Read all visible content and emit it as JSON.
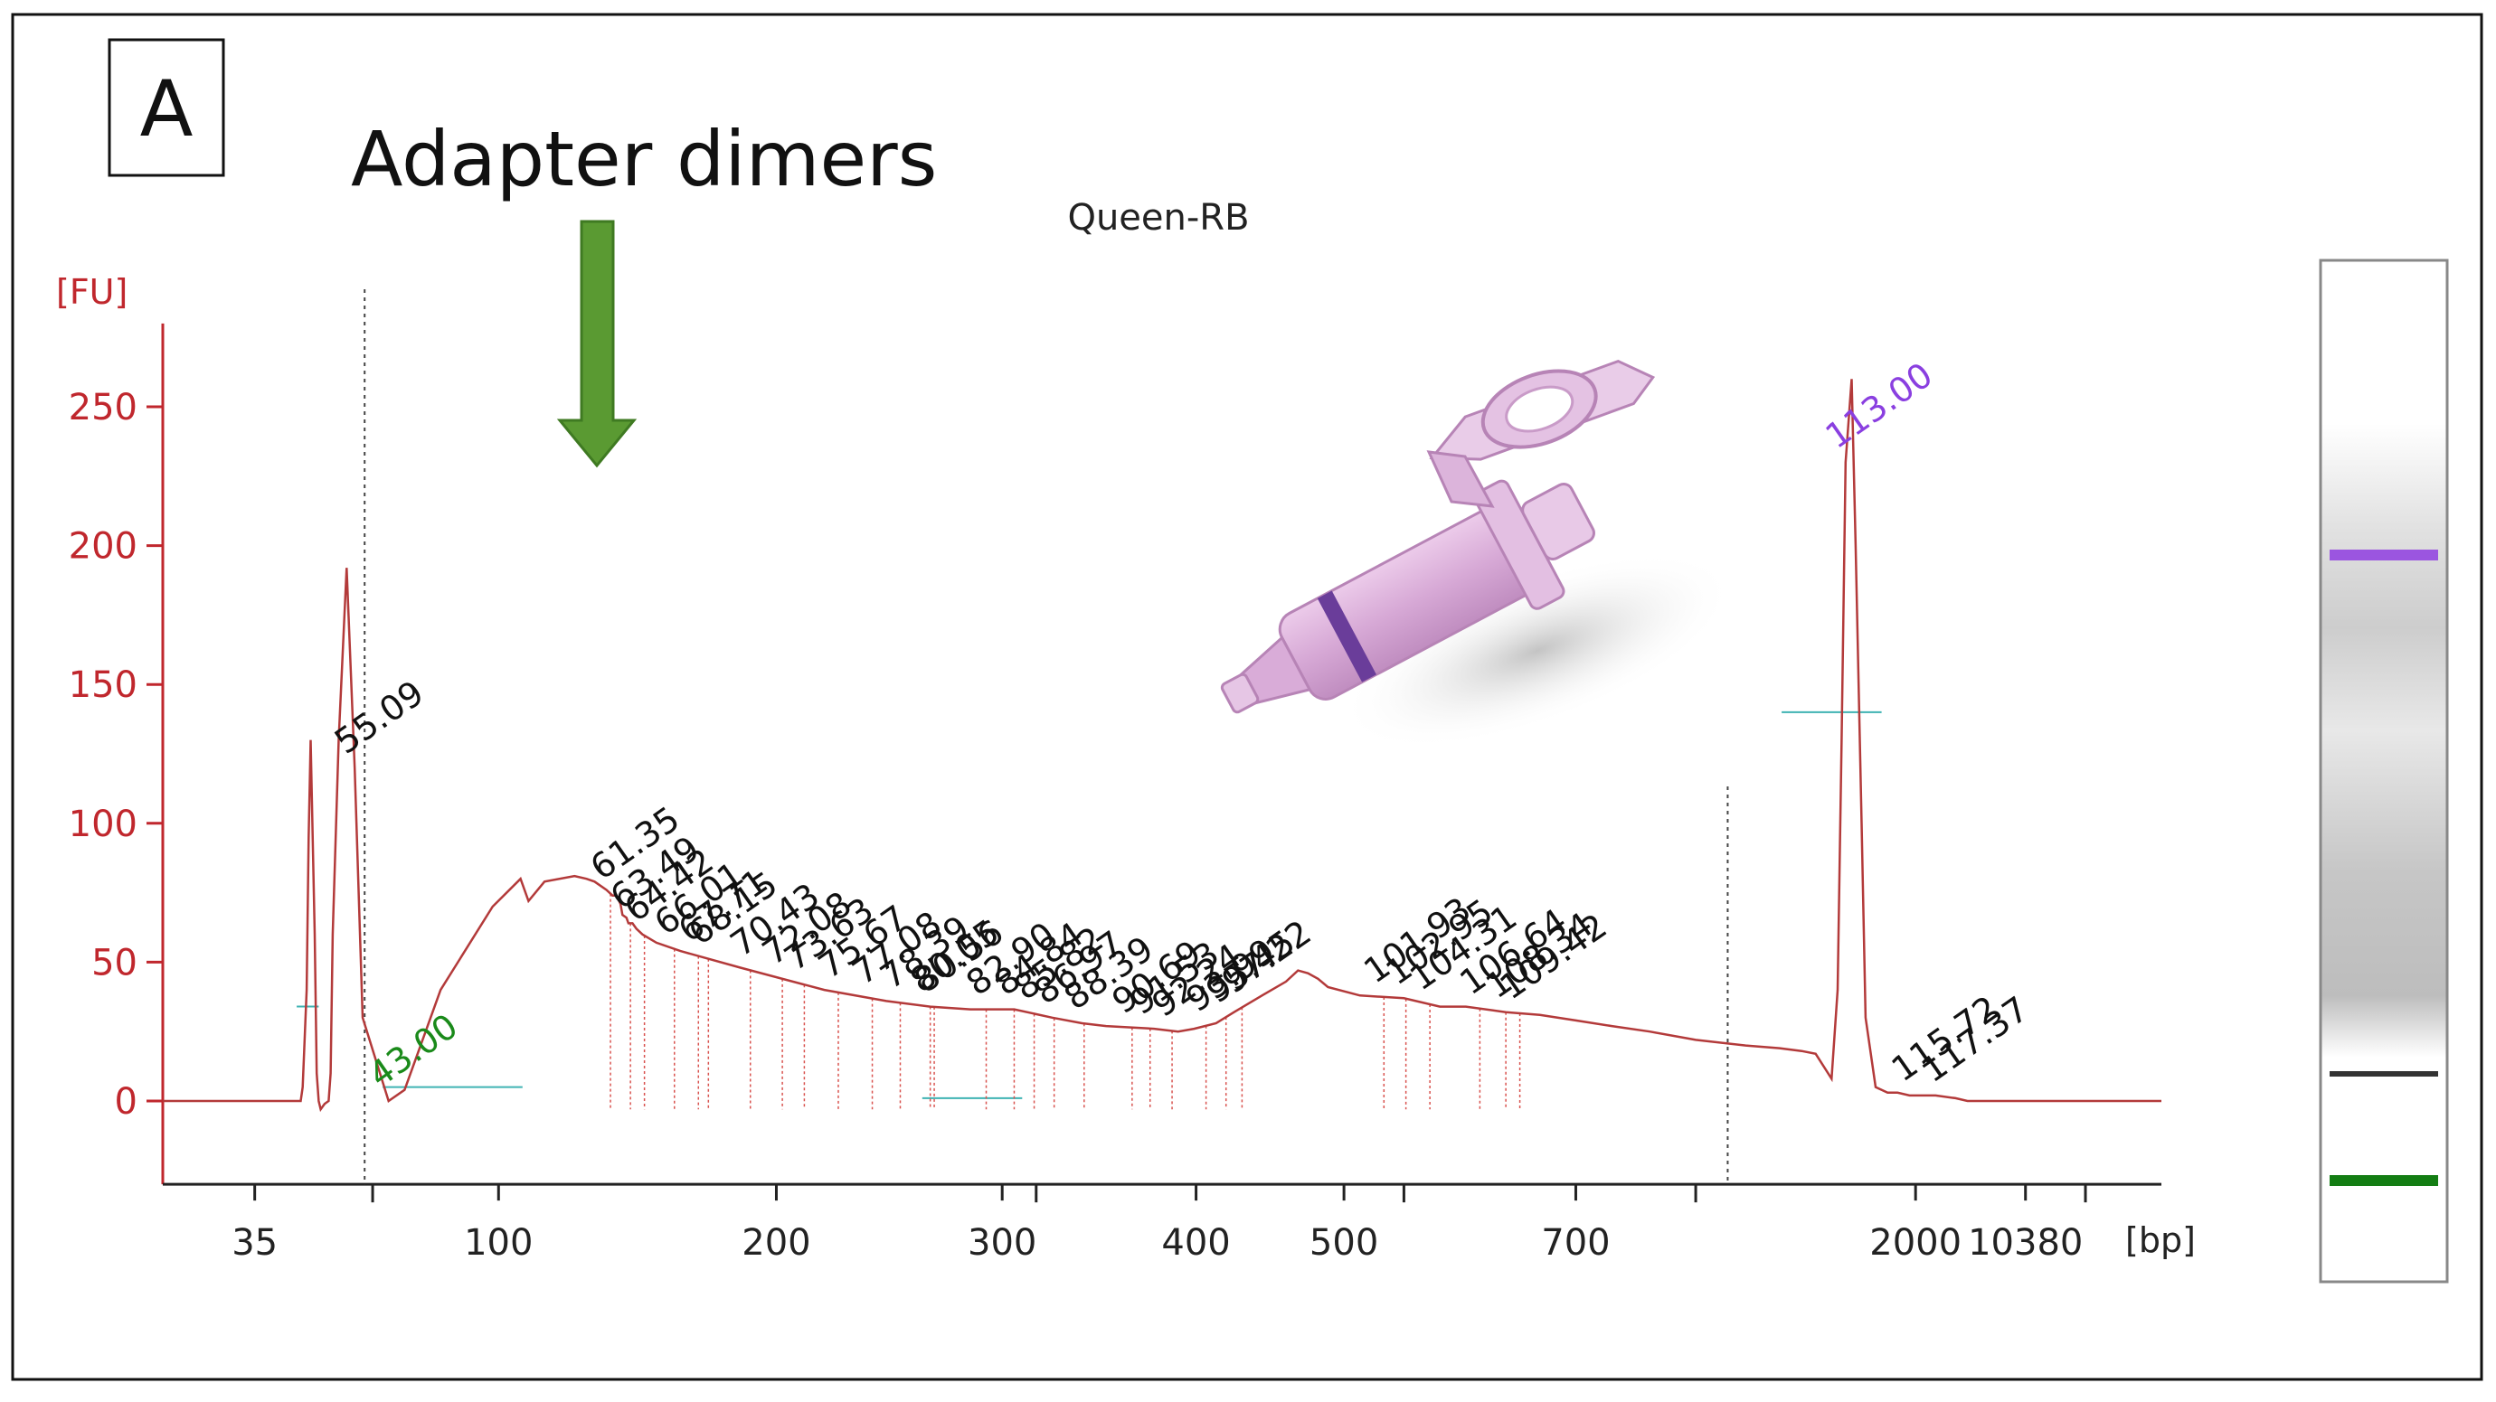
{
  "panel_label": "A",
  "annotation": {
    "text": "Adapter dimers",
    "arrow_color": "#5a9a32"
  },
  "chart_data": {
    "type": "line",
    "title": "Queen-RB",
    "ylabel": "[FU]",
    "xlabel": "[bp]",
    "ylim": [
      -30,
      280
    ],
    "y_ticks": [
      0,
      50,
      100,
      150,
      200,
      250
    ],
    "x_ticks": [
      "35",
      "100",
      "200",
      "300",
      "400",
      "500",
      "700",
      "2000",
      "10380"
    ],
    "x_ticks_minor_count": 4,
    "series": [
      {
        "x": [
          0,
          55,
          69,
          70,
          72,
          73,
          74,
          76,
          77,
          78,
          79,
          80,
          81,
          83,
          84,
          85,
          88,
          92,
          96,
          100,
          113,
          121,
          139,
          165,
          179,
          183,
          191,
          206,
          212,
          216,
          222,
          225,
          227,
          229,
          230,
          232,
          233,
          235,
          236,
          237,
          240,
          247,
          259,
          289,
          331,
          362,
          384,
          404,
          417,
          426,
          445,
          460,
          472,
          496,
          508,
          516,
          527,
          536,
          550,
          562,
          568,
          573,
          578,
          583,
          599,
          621,
          639,
          652,
          672,
          689,
          707,
          725,
          744,
          767,
          792,
          809,
          820,
          827,
          835,
          838,
          840,
          842,
          845,
          847,
          850,
          852,
          857,
          863,
          868,
          874,
          887,
          897,
          903,
          1000
        ],
        "y": [
          0,
          0,
          0,
          5,
          40,
          95,
          130,
          60,
          10,
          0,
          -3,
          -2,
          -1,
          0,
          10,
          60,
          130,
          192,
          120,
          30,
          0,
          4,
          40,
          70,
          80,
          72,
          79,
          81,
          80,
          79,
          76,
          74,
          74,
          71,
          67,
          66,
          64,
          64,
          63,
          62,
          60,
          57,
          54,
          48,
          40,
          36,
          34,
          33,
          33,
          33,
          30,
          28,
          27,
          26,
          25,
          26,
          28,
          32,
          38,
          43,
          47,
          46,
          44,
          41,
          38,
          37,
          34,
          34,
          32,
          31,
          29,
          27,
          25,
          22,
          20,
          19,
          18,
          17,
          8,
          40,
          130,
          230,
          260,
          200,
          100,
          30,
          5,
          3,
          3,
          2,
          2,
          1,
          0,
          0
        ]
      }
    ],
    "peak_labels": [
      {
        "x": 113,
        "text": "43.00",
        "color": "#1a8a1a"
      },
      {
        "x": 96,
        "text": "55.09",
        "color": "#111111"
      },
      {
        "x": 224,
        "text": "61.35",
        "color": "#111111"
      },
      {
        "x": 234,
        "text": "63.49",
        "color": "#111111"
      },
      {
        "x": 241,
        "text": "64.42",
        "color": "#111111"
      },
      {
        "x": 256,
        "text": "66.01",
        "color": "#111111"
      },
      {
        "x": 268,
        "text": "67.71",
        "color": "#111111"
      },
      {
        "x": 273,
        "text": "68.15",
        "color": "#111111"
      },
      {
        "x": 294,
        "text": "70.43",
        "color": "#111111"
      },
      {
        "x": 310,
        "text": "72.08",
        "color": "#111111"
      },
      {
        "x": 321,
        "text": "73.63",
        "color": "#111111"
      },
      {
        "x": 338,
        "text": "75.67",
        "color": "#111111"
      },
      {
        "x": 355,
        "text": "77.08",
        "color": "#111111"
      },
      {
        "x": 369,
        "text": "78.39",
        "color": "#111111"
      },
      {
        "x": 384,
        "text": "80.05",
        "color": "#111111"
      },
      {
        "x": 386,
        "text": "80.56",
        "color": "#111111"
      },
      {
        "x": 412,
        "text": "82.90",
        "color": "#111111"
      },
      {
        "x": 426,
        "text": "84.84",
        "color": "#111111"
      },
      {
        "x": 436,
        "text": "85.82",
        "color": "#111111"
      },
      {
        "x": 446,
        "text": "86.97",
        "color": "#111111"
      },
      {
        "x": 461,
        "text": "88.39",
        "color": "#111111"
      },
      {
        "x": 485,
        "text": "90.69",
        "color": "#111111"
      },
      {
        "x": 494,
        "text": "91.53",
        "color": "#111111"
      },
      {
        "x": 505,
        "text": "92.24",
        "color": "#111111"
      },
      {
        "x": 522,
        "text": "93.99",
        "color": "#111111"
      },
      {
        "x": 532,
        "text": "95.45",
        "color": "#111111"
      },
      {
        "x": 540,
        "text": "97.22",
        "color": "#111111"
      },
      {
        "x": 611,
        "text": "101.93",
        "color": "#111111"
      },
      {
        "x": 622,
        "text": "102.95",
        "color": "#111111"
      },
      {
        "x": 634,
        "text": "104.31",
        "color": "#111111"
      },
      {
        "x": 659,
        "text": "106.64",
        "color": "#111111"
      },
      {
        "x": 672,
        "text": "108.34",
        "color": "#111111"
      },
      {
        "x": 679,
        "text": "109.42",
        "color": "#111111"
      },
      {
        "x": 842,
        "text": "113.00",
        "color": "#8a3fe0"
      },
      {
        "x": 875,
        "text": "115.72",
        "color": "#111111"
      },
      {
        "x": 890,
        "text": "117.37",
        "color": "#111111"
      }
    ],
    "grid": false,
    "colors": {
      "axis": "#c0272d",
      "line": "#b33a3a",
      "baseline": "#3fb3b3",
      "marker": "#9b55e0",
      "lower_marker": "#137d13"
    }
  },
  "gel_lane": {
    "bands": [
      {
        "name": "upper-marker",
        "color": "#9b55e0"
      },
      {
        "name": "sample-band",
        "color": "#333333"
      },
      {
        "name": "lower-marker",
        "color": "#137d13"
      }
    ]
  },
  "inset_image": "pink-microcentrifuge-tube-icon"
}
